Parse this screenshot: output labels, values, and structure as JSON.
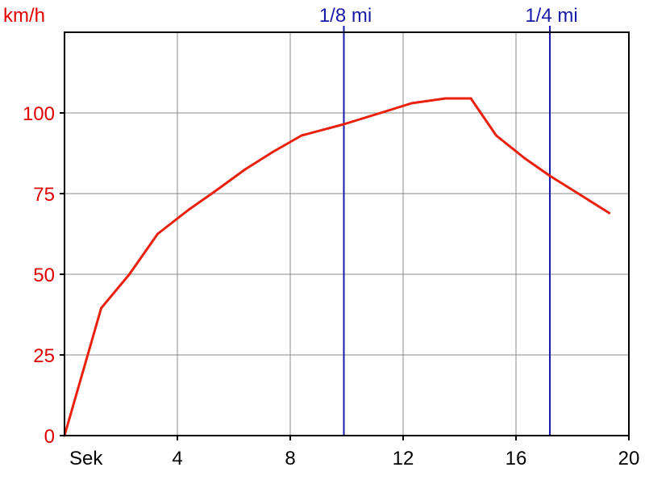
{
  "chart_data": {
    "type": "line",
    "y_unit_label": "km/h",
    "x_unit_label": "Sek",
    "xlim": [
      0,
      20
    ],
    "ylim": [
      0,
      125
    ],
    "x_ticks": [
      {
        "value": 4,
        "label": "4"
      },
      {
        "value": 8,
        "label": "8"
      },
      {
        "value": 12,
        "label": "12"
      },
      {
        "value": 16,
        "label": "16"
      },
      {
        "value": 20,
        "label": "20"
      }
    ],
    "y_ticks": [
      {
        "value": 0,
        "label": "0"
      },
      {
        "value": 25,
        "label": "25"
      },
      {
        "value": 50,
        "label": "50"
      },
      {
        "value": 75,
        "label": "75"
      },
      {
        "value": 100,
        "label": "100"
      }
    ],
    "grid": true,
    "markers": [
      {
        "x": 9.9,
        "label": "1/8 mi"
      },
      {
        "x": 17.2,
        "label": "1/4 mi"
      }
    ],
    "series": [
      {
        "color": "#e8200c",
        "points": [
          {
            "x": 0.0,
            "y": 0
          },
          {
            "x": 1.3,
            "y": 39.5
          },
          {
            "x": 2.3,
            "y": 50
          },
          {
            "x": 3.3,
            "y": 62.5
          },
          {
            "x": 4.4,
            "y": 70
          },
          {
            "x": 5.3,
            "y": 75.5
          },
          {
            "x": 6.4,
            "y": 82.5
          },
          {
            "x": 7.4,
            "y": 88
          },
          {
            "x": 8.4,
            "y": 93
          },
          {
            "x": 9.9,
            "y": 96.5
          },
          {
            "x": 11.2,
            "y": 100
          },
          {
            "x": 12.3,
            "y": 103
          },
          {
            "x": 13.5,
            "y": 104.5
          },
          {
            "x": 14.4,
            "y": 104.5
          },
          {
            "x": 15.3,
            "y": 93
          },
          {
            "x": 16.3,
            "y": 86
          },
          {
            "x": 17.2,
            "y": 80.5
          },
          {
            "x": 18.3,
            "y": 74.5
          },
          {
            "x": 19.3,
            "y": 69
          }
        ]
      }
    ]
  }
}
